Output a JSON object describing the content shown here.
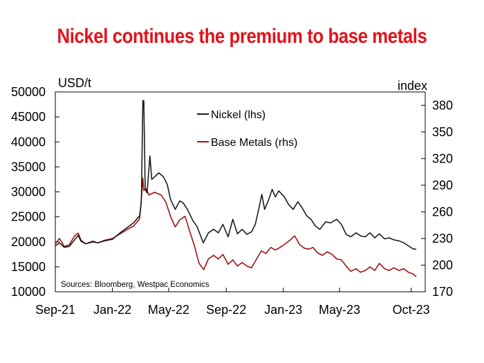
{
  "title": "Nickel continues the premium to base metals",
  "chart_data": {
    "type": "line",
    "title": "Nickel continues the premium to base metals",
    "source": "Sources: Bloomberg, Westpac Economics",
    "left_axis": {
      "unit": "USD/t",
      "min": 10000,
      "max": 50000,
      "step": 5000,
      "ticks": [
        "10000",
        "15000",
        "20000",
        "25000",
        "30000",
        "35000",
        "40000",
        "45000",
        "50000"
      ]
    },
    "right_axis": {
      "unit": "index",
      "min": 170,
      "max": 395,
      "step": 30,
      "ticks": [
        "170",
        "200",
        "230",
        "260",
        "290",
        "320",
        "350",
        "380"
      ]
    },
    "x_axis": {
      "start": "2021-09-01",
      "end": "2023-10-31",
      "ticks": [
        {
          "label": "Sep-21",
          "date": "2021-09-01"
        },
        {
          "label": "Jan-22",
          "date": "2022-01-01"
        },
        {
          "label": "May-22",
          "date": "2022-05-01"
        },
        {
          "label": "Sep-22",
          "date": "2022-09-01"
        },
        {
          "label": "Jan-23",
          "date": "2023-01-01"
        },
        {
          "label": "May-23",
          "date": "2023-05-01"
        },
        {
          "label": "Oct-23",
          "date": "2023-10-01"
        }
      ]
    },
    "legend_position": "top-center",
    "grid": false,
    "series": [
      {
        "name": "Nickel (lhs)",
        "axis": "left",
        "color": "#1a1a1a",
        "points": [
          [
            "2021-09-01",
            19200
          ],
          [
            "2021-09-10",
            19800
          ],
          [
            "2021-09-20",
            18900
          ],
          [
            "2021-10-01",
            19100
          ],
          [
            "2021-10-12",
            20400
          ],
          [
            "2021-10-20",
            21300
          ],
          [
            "2021-10-26",
            20100
          ],
          [
            "2021-11-05",
            19600
          ],
          [
            "2021-11-20",
            20000
          ],
          [
            "2021-12-01",
            19800
          ],
          [
            "2021-12-15",
            20200
          ],
          [
            "2022-01-01",
            20500
          ],
          [
            "2022-01-20",
            22000
          ],
          [
            "2022-02-01",
            22800
          ],
          [
            "2022-02-15",
            23800
          ],
          [
            "2022-02-28",
            25200
          ],
          [
            "2022-03-03",
            27500
          ],
          [
            "2022-03-04",
            29500
          ],
          [
            "2022-03-07",
            48300
          ],
          [
            "2022-03-09",
            48200
          ],
          [
            "2022-03-12",
            30500
          ],
          [
            "2022-03-16",
            29800
          ],
          [
            "2022-03-22",
            37200
          ],
          [
            "2022-03-26",
            32500
          ],
          [
            "2022-04-01",
            33000
          ],
          [
            "2022-04-10",
            33800
          ],
          [
            "2022-04-20",
            33000
          ],
          [
            "2022-04-28",
            31500
          ],
          [
            "2022-05-05",
            28500
          ],
          [
            "2022-05-15",
            26500
          ],
          [
            "2022-05-25",
            28200
          ],
          [
            "2022-06-01",
            27800
          ],
          [
            "2022-06-10",
            26500
          ],
          [
            "2022-06-22",
            24200
          ],
          [
            "2022-07-01",
            23000
          ],
          [
            "2022-07-14",
            19800
          ],
          [
            "2022-07-25",
            21800
          ],
          [
            "2022-08-05",
            22500
          ],
          [
            "2022-08-15",
            21800
          ],
          [
            "2022-08-25",
            23500
          ],
          [
            "2022-09-05",
            21000
          ],
          [
            "2022-09-15",
            24500
          ],
          [
            "2022-09-25",
            21600
          ],
          [
            "2022-10-05",
            22500
          ],
          [
            "2022-10-15",
            21500
          ],
          [
            "2022-10-25",
            22000
          ],
          [
            "2022-11-02",
            23500
          ],
          [
            "2022-11-10",
            26800
          ],
          [
            "2022-11-16",
            29500
          ],
          [
            "2022-11-22",
            26500
          ],
          [
            "2022-12-01",
            28500
          ],
          [
            "2022-12-08",
            30500
          ],
          [
            "2022-12-15",
            29000
          ],
          [
            "2022-12-22",
            30200
          ],
          [
            "2023-01-03",
            29000
          ],
          [
            "2023-01-12",
            27500
          ],
          [
            "2023-01-22",
            26500
          ],
          [
            "2023-02-01",
            28000
          ],
          [
            "2023-02-10",
            26800
          ],
          [
            "2023-02-20",
            25200
          ],
          [
            "2023-03-01",
            24500
          ],
          [
            "2023-03-10",
            23200
          ],
          [
            "2023-03-20",
            22500
          ],
          [
            "2023-04-01",
            24000
          ],
          [
            "2023-04-12",
            23800
          ],
          [
            "2023-04-25",
            24500
          ],
          [
            "2023-05-05",
            23500
          ],
          [
            "2023-05-15",
            21500
          ],
          [
            "2023-05-25",
            21000
          ],
          [
            "2023-06-05",
            21800
          ],
          [
            "2023-06-15",
            21200
          ],
          [
            "2023-06-25",
            21000
          ],
          [
            "2023-07-05",
            21800
          ],
          [
            "2023-07-15",
            20800
          ],
          [
            "2023-07-25",
            21600
          ],
          [
            "2023-08-05",
            20600
          ],
          [
            "2023-08-15",
            20800
          ],
          [
            "2023-08-25",
            20400
          ],
          [
            "2023-09-05",
            20200
          ],
          [
            "2023-09-15",
            19800
          ],
          [
            "2023-09-25",
            19200
          ],
          [
            "2023-10-05",
            18600
          ],
          [
            "2023-10-12",
            18500
          ]
        ]
      },
      {
        "name": "Base Metals (rhs)",
        "axis": "right",
        "color": "#a01010",
        "points": [
          [
            "2021-09-01",
            224
          ],
          [
            "2021-09-10",
            230
          ],
          [
            "2021-09-20",
            221
          ],
          [
            "2021-10-01",
            223
          ],
          [
            "2021-10-12",
            233
          ],
          [
            "2021-10-20",
            236
          ],
          [
            "2021-10-26",
            228
          ],
          [
            "2021-11-05",
            224
          ],
          [
            "2021-11-20",
            227
          ],
          [
            "2021-12-01",
            225
          ],
          [
            "2021-12-15",
            228
          ],
          [
            "2022-01-01",
            230
          ],
          [
            "2022-01-20",
            236
          ],
          [
            "2022-02-01",
            240
          ],
          [
            "2022-02-15",
            244
          ],
          [
            "2022-02-28",
            252
          ],
          [
            "2022-03-03",
            268
          ],
          [
            "2022-03-07",
            298
          ],
          [
            "2022-03-09",
            284
          ],
          [
            "2022-03-14",
            286
          ],
          [
            "2022-03-20",
            279
          ],
          [
            "2022-04-01",
            282
          ],
          [
            "2022-04-15",
            279
          ],
          [
            "2022-04-25",
            271
          ],
          [
            "2022-05-05",
            255
          ],
          [
            "2022-05-15",
            243
          ],
          [
            "2022-05-25",
            251
          ],
          [
            "2022-06-05",
            255
          ],
          [
            "2022-06-15",
            238
          ],
          [
            "2022-06-25",
            222
          ],
          [
            "2022-07-05",
            202
          ],
          [
            "2022-07-15",
            195
          ],
          [
            "2022-07-25",
            207
          ],
          [
            "2022-08-05",
            211
          ],
          [
            "2022-08-15",
            207
          ],
          [
            "2022-08-25",
            212
          ],
          [
            "2022-09-05",
            201
          ],
          [
            "2022-09-15",
            206
          ],
          [
            "2022-09-25",
            199
          ],
          [
            "2022-10-05",
            203
          ],
          [
            "2022-10-15",
            199
          ],
          [
            "2022-10-25",
            197
          ],
          [
            "2022-11-05",
            207
          ],
          [
            "2022-11-15",
            216
          ],
          [
            "2022-11-25",
            213
          ],
          [
            "2022-12-05",
            220
          ],
          [
            "2022-12-15",
            217
          ],
          [
            "2022-12-25",
            220
          ],
          [
            "2023-01-05",
            224
          ],
          [
            "2023-01-15",
            228
          ],
          [
            "2023-01-25",
            233
          ],
          [
            "2023-02-05",
            223
          ],
          [
            "2023-02-15",
            219
          ],
          [
            "2023-02-25",
            218
          ],
          [
            "2023-03-05",
            220
          ],
          [
            "2023-03-15",
            214
          ],
          [
            "2023-03-25",
            211
          ],
          [
            "2023-04-05",
            215
          ],
          [
            "2023-04-15",
            212
          ],
          [
            "2023-04-25",
            207
          ],
          [
            "2023-05-05",
            206
          ],
          [
            "2023-05-15",
            199
          ],
          [
            "2023-05-25",
            193
          ],
          [
            "2023-06-05",
            196
          ],
          [
            "2023-06-15",
            192
          ],
          [
            "2023-06-25",
            194
          ],
          [
            "2023-07-05",
            198
          ],
          [
            "2023-07-15",
            194
          ],
          [
            "2023-07-25",
            202
          ],
          [
            "2023-08-05",
            196
          ],
          [
            "2023-08-15",
            194
          ],
          [
            "2023-08-25",
            197
          ],
          [
            "2023-09-05",
            194
          ],
          [
            "2023-09-15",
            196
          ],
          [
            "2023-09-25",
            192
          ],
          [
            "2023-10-05",
            190
          ],
          [
            "2023-10-12",
            187
          ]
        ]
      }
    ]
  }
}
